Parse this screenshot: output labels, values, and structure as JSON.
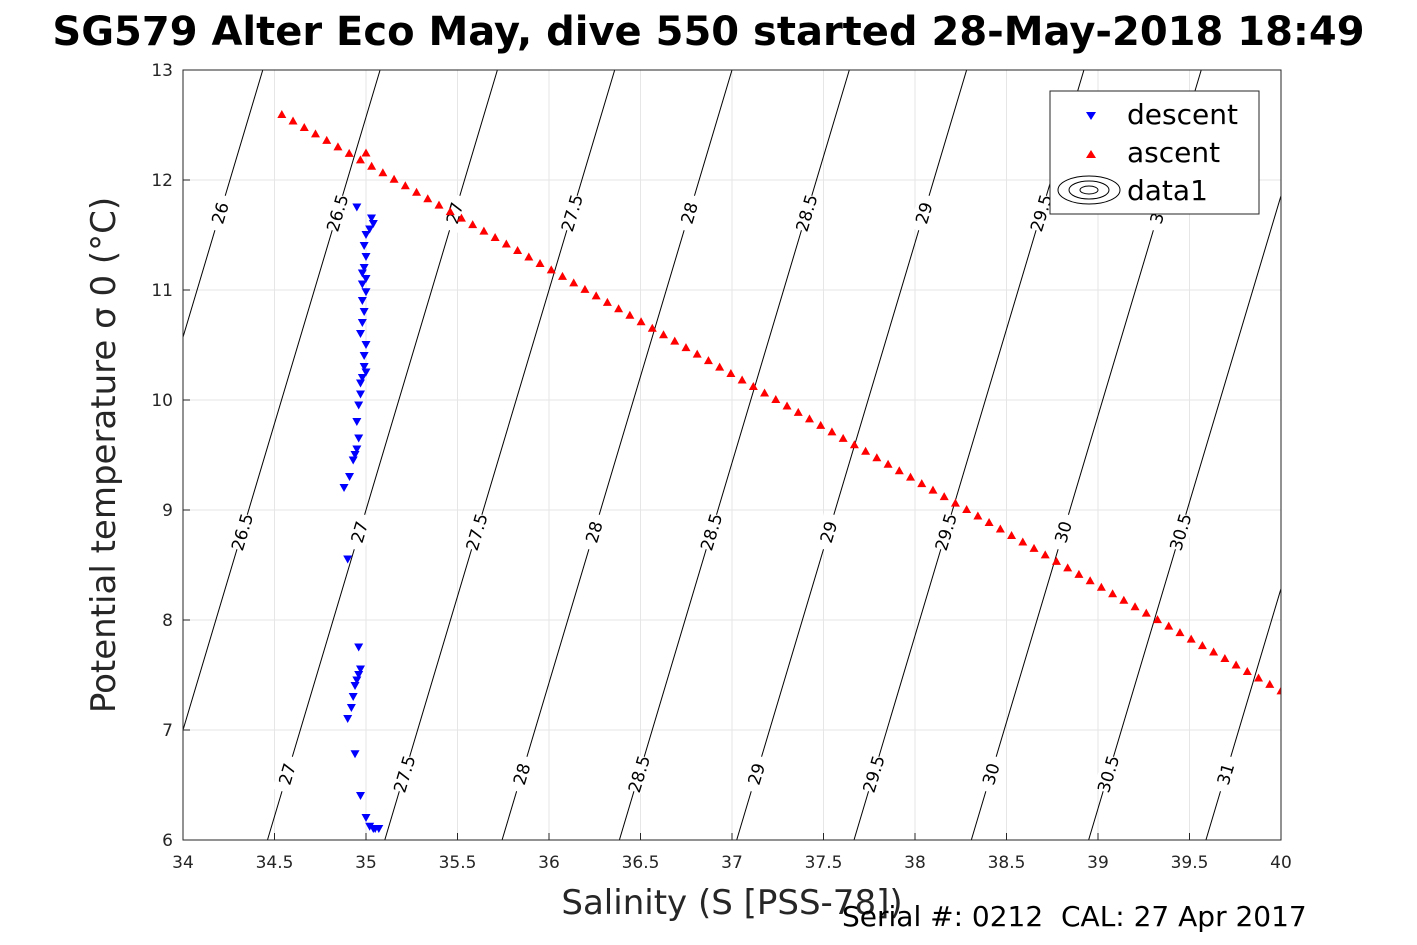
{
  "title": "SG579 Alter Eco May, dive 550 started 28-May-2018 18:49",
  "footer": "Serial #: 0212  CAL: 27 Apr 2017",
  "chart_data": {
    "type": "scatter",
    "xlabel": "Salinity (S [PSS-78])",
    "ylabel": "Potential temperature σ 0 (°C)",
    "xlim": [
      34,
      40
    ],
    "ylim": [
      6,
      13
    ],
    "xticks": [
      "34",
      "34.5",
      "35",
      "35.5",
      "36",
      "36.5",
      "37",
      "37.5",
      "38",
      "38.5",
      "39",
      "39.5",
      "40"
    ],
    "yticks": [
      "6",
      "7",
      "8",
      "9",
      "10",
      "11",
      "12",
      "13"
    ],
    "grid": true,
    "legend_position": "top-right",
    "legend": [
      "descent",
      "ascent",
      "data1"
    ],
    "colors": {
      "descent": "#0000ff",
      "ascent": "#ff0000",
      "contour": "#000000"
    },
    "series": [
      {
        "name": "descent",
        "marker": "triangle-down",
        "points": [
          [
            35.03,
            11.65
          ],
          [
            35.04,
            11.6
          ],
          [
            35.02,
            11.55
          ],
          [
            35.0,
            11.5
          ],
          [
            34.99,
            11.4
          ],
          [
            35.0,
            11.3
          ],
          [
            34.99,
            11.2
          ],
          [
            34.98,
            11.15
          ],
          [
            35.0,
            11.1
          ],
          [
            34.98,
            11.05
          ],
          [
            35.0,
            10.98
          ],
          [
            34.98,
            10.9
          ],
          [
            34.99,
            10.8
          ],
          [
            34.98,
            10.7
          ],
          [
            34.97,
            10.6
          ],
          [
            35.0,
            10.5
          ],
          [
            34.99,
            10.4
          ],
          [
            34.99,
            10.3
          ],
          [
            35.0,
            10.25
          ],
          [
            34.98,
            10.2
          ],
          [
            34.97,
            10.15
          ],
          [
            34.97,
            10.05
          ],
          [
            34.96,
            9.95
          ],
          [
            34.95,
            9.8
          ],
          [
            34.96,
            9.65
          ],
          [
            34.95,
            9.55
          ],
          [
            34.94,
            9.5
          ],
          [
            34.93,
            9.45
          ],
          [
            34.91,
            9.3
          ],
          [
            34.88,
            9.2
          ],
          [
            34.9,
            8.55
          ],
          [
            34.96,
            7.75
          ],
          [
            34.97,
            7.55
          ],
          [
            34.96,
            7.5
          ],
          [
            34.95,
            7.45
          ],
          [
            34.94,
            7.4
          ],
          [
            34.93,
            7.3
          ],
          [
            34.92,
            7.2
          ],
          [
            34.9,
            7.1
          ],
          [
            34.94,
            6.78
          ],
          [
            34.97,
            6.4
          ],
          [
            35.0,
            6.2
          ],
          [
            35.02,
            6.12
          ],
          [
            35.04,
            6.1
          ],
          [
            35.05,
            6.1
          ],
          [
            35.07,
            6.1
          ],
          [
            34.95,
            11.75
          ]
        ]
      },
      {
        "name": "ascent",
        "marker": "triangle-up",
        "endpoints": [
          [
            34.54,
            12.6
          ],
          [
            40.0,
            7.36
          ]
        ],
        "count": 90,
        "extra_points": [
          [
            35.0,
            12.25
          ]
        ]
      },
      {
        "name": "data1",
        "type": "contour",
        "levels": [
          26,
          26.5,
          27,
          27.5,
          28,
          28.5,
          29,
          29.5,
          30,
          30.5,
          31
        ],
        "labels": [
          "26",
          "26.5",
          "27",
          "27.5",
          "28",
          "28.5",
          "29",
          "29.5",
          "30",
          "30.5",
          "31"
        ]
      }
    ]
  }
}
